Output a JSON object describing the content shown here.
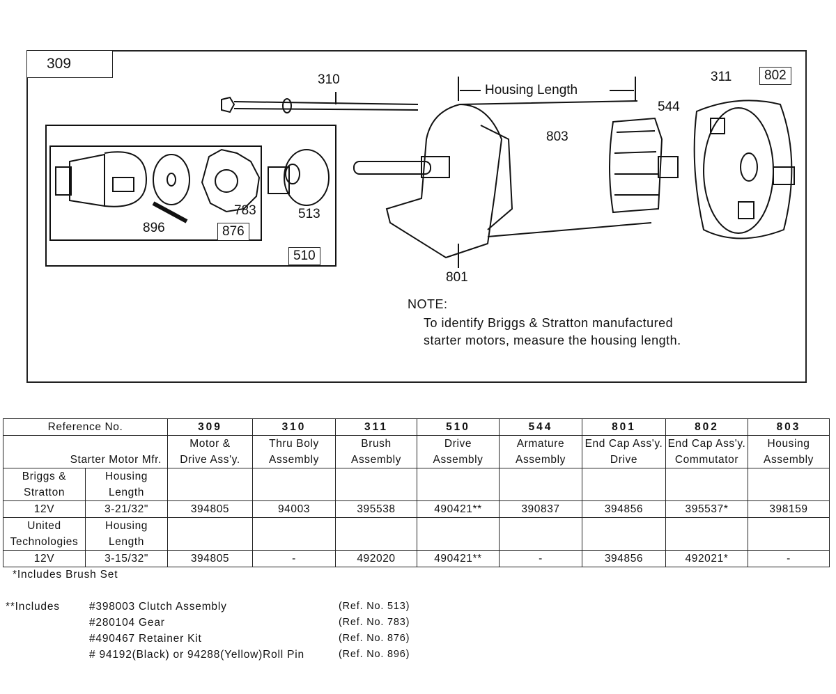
{
  "diagram": {
    "figure_ref": "309",
    "callouts": {
      "thru_bolt": "310",
      "housing_length": "Housing Length",
      "armature": "544",
      "brush": "311",
      "end_cap_commutator": "802",
      "housing": "803",
      "roll_pin": "896",
      "retainer_kit": "876",
      "gear": "783",
      "clutch": "513",
      "drive": "510",
      "end_cap_drive": "801"
    },
    "note_title": "NOTE:",
    "note_line1": "To identify Briggs & Stratton manufactured",
    "note_line2": "starter motors, measure the housing length."
  },
  "table": {
    "ref_header": "Reference No.",
    "mfr_header": "Starter Motor Mfr.",
    "columns": [
      {
        "ref": "309",
        "l1": "Motor &",
        "l2": "Drive Ass'y."
      },
      {
        "ref": "310",
        "l1": "Thru Boly",
        "l2": "Assembly"
      },
      {
        "ref": "311",
        "l1": "Brush",
        "l2": "Assembly"
      },
      {
        "ref": "510",
        "l1": "Drive",
        "l2": "Assembly"
      },
      {
        "ref": "544",
        "l1": "Armature",
        "l2": "Assembly"
      },
      {
        "ref": "801",
        "l1": "End Cap Ass'y.",
        "l2": "Drive"
      },
      {
        "ref": "802",
        "l1": "End Cap Ass'y.",
        "l2": "Commutator"
      },
      {
        "ref": "803",
        "l1": "Housing",
        "l2": "Assembly"
      }
    ],
    "rows": [
      {
        "mfr1": "Briggs &",
        "mfr2": "Stratton",
        "hl1": "Housing",
        "hl2": "Length",
        "volt": "12V",
        "length": "3-21/32\"",
        "values": [
          "394805",
          "94003",
          "395538",
          "490421**",
          "390837",
          "394856",
          "395537*",
          "398159"
        ]
      },
      {
        "mfr1": "United",
        "mfr2": "Technologies",
        "hl1": "Housing",
        "hl2": "Length",
        "volt": "12V",
        "length": "3-15/32\"",
        "values": [
          "394805",
          "-",
          "492020",
          "490421**",
          "-",
          "394856",
          "492021*",
          "-"
        ]
      }
    ]
  },
  "footnotes": {
    "single": "*Includes Brush Set",
    "double_label": "**Includes",
    "items": [
      {
        "part": "#398003  Clutch Assembly",
        "ref": "(Ref. No. 513)"
      },
      {
        "part": "#280104  Gear",
        "ref": "(Ref. No. 783)"
      },
      {
        "part": "#490467  Retainer Kit",
        "ref": "(Ref. No. 876)"
      },
      {
        "part": "# 94192(Black)  or  94288(Yellow)Roll  Pin",
        "ref": "(Ref. No. 896)"
      }
    ]
  }
}
